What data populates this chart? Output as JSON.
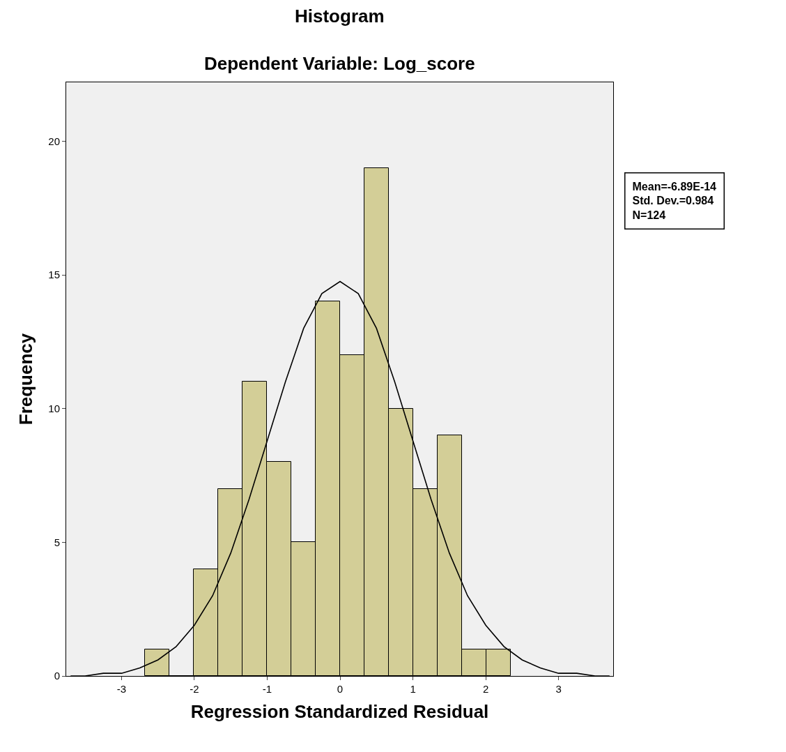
{
  "chart_data": {
    "type": "histogram",
    "title": "Histogram",
    "subtitle": "Dependent Variable: Log_score",
    "xlabel": "Regression Standardized Residual",
    "ylabel": "Frequency",
    "bins": [
      -2.68,
      -2.345,
      -2.01,
      -1.675,
      -1.34,
      -1.005,
      -0.67,
      -0.335,
      0,
      0.335,
      0.67,
      1.005,
      1.34,
      1.675,
      2.01,
      2.345
    ],
    "values": [
      1,
      0,
      4,
      7,
      11,
      8,
      5,
      14,
      12,
      19,
      10,
      7,
      9,
      1,
      1
    ],
    "color": "#d3ce97",
    "series": [
      {
        "type": "line",
        "color": "#000000",
        "x": [
          -3.7,
          -3.5,
          -3.25,
          -3,
          -2.75,
          -2.5,
          -2.25,
          -2,
          -1.75,
          -1.5,
          -1.25,
          -1,
          -0.75,
          -0.5,
          -0.25,
          0,
          0.25,
          0.5,
          0.75,
          1,
          1.25,
          1.5,
          1.75,
          2,
          2.25,
          2.5,
          2.75,
          3,
          3.25,
          3.5,
          3.7
        ],
        "values": [
          0,
          0,
          0.1,
          0.1,
          0.3,
          0.6,
          1.1,
          1.9,
          3,
          4.6,
          6.6,
          8.8,
          11,
          13,
          14.3,
          14.75,
          14.3,
          13,
          11,
          8.8,
          6.6,
          4.6,
          3,
          1.9,
          1.1,
          0.6,
          0.3,
          0.1,
          0.1,
          0,
          0
        ]
      }
    ],
    "xlim": [
      -3.76,
      3.75
    ],
    "ylim": [
      0,
      22.2
    ],
    "xticks": [
      -3,
      -2,
      -1,
      0,
      1,
      2,
      3
    ],
    "yticks": [
      0,
      5,
      10,
      15,
      20
    ],
    "grid": false,
    "annotations": [
      "Mean=-6.89E-14\nStd. Dev.=0.984\nN=124"
    ]
  }
}
